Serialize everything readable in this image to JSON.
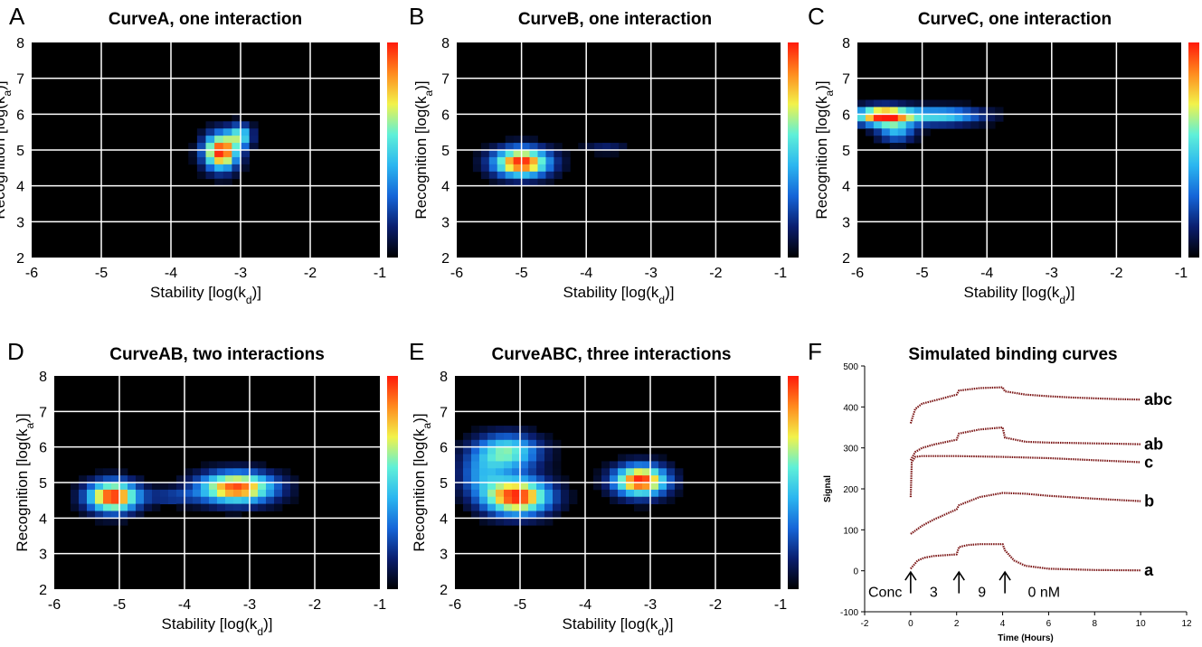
{
  "panels": [
    {
      "letter": "A",
      "title": "CurveA, one interaction"
    },
    {
      "letter": "B",
      "title": "CurveB, one interaction"
    },
    {
      "letter": "C",
      "title": "CurveC, one interaction"
    },
    {
      "letter": "D",
      "title": "CurveAB, two interactions"
    },
    {
      "letter": "E",
      "title": "CurveABC, three interactions"
    },
    {
      "letter": "F",
      "title": "Simulated binding curves"
    }
  ],
  "heatmap_axes": {
    "xlabel_main": "Stability [log(k",
    "xlabel_sub": "d",
    "xlabel_end": ")]",
    "ylabel_main": "Recognition [log(k",
    "ylabel_sub": "a",
    "ylabel_end": ")]"
  },
  "colors": {
    "background": "#000000",
    "grid": "#ffffff",
    "colormap": [
      "#000000",
      "#0a1e6e",
      "#1565d8",
      "#2bb6f0",
      "#5ff0d8",
      "#f2f24a",
      "#ff8a1e",
      "#ff1a0a"
    ],
    "curve": "#7a1414"
  },
  "binding_axes": {
    "xlabel": "Time (Hours)",
    "ylabel": "Signal"
  },
  "annotations": {
    "conc": "Conc",
    "c1": "3",
    "c2": "9",
    "c3": "0 nM"
  },
  "chart_data": [
    {
      "type": "heatmap",
      "panel": "A",
      "title": "CurveA, one interaction",
      "xlim": [
        -6,
        -1
      ],
      "ylim": [
        2,
        8
      ],
      "xticks": [
        "-6",
        "-5",
        "-4",
        "-3",
        "-2",
        "-1"
      ],
      "yticks": [
        "2",
        "3",
        "4",
        "5",
        "6",
        "7",
        "8"
      ],
      "peaks": [
        {
          "x": -3.28,
          "y": 4.95,
          "sx": 0.17,
          "sy": 0.35,
          "amp": 1.0
        },
        {
          "x": -3.0,
          "y": 5.4,
          "sx": 0.12,
          "sy": 0.22,
          "amp": 0.5
        }
      ]
    },
    {
      "type": "heatmap",
      "panel": "B",
      "title": "CurveB, one interaction",
      "xlim": [
        -6,
        -1
      ],
      "ylim": [
        2,
        8
      ],
      "xticks": [
        "-6",
        "-5",
        "-4",
        "-3",
        "-2",
        "-1"
      ],
      "yticks": [
        "2",
        "3",
        "4",
        "5",
        "6",
        "7",
        "8"
      ],
      "peaks": [
        {
          "x": -5.0,
          "y": 4.65,
          "sx": 0.3,
          "sy": 0.28,
          "amp": 1.0
        },
        {
          "x": -3.7,
          "y": 5.05,
          "sx": 0.25,
          "sy": 0.1,
          "amp": 0.15
        }
      ]
    },
    {
      "type": "heatmap",
      "panel": "C",
      "title": "CurveC, one interaction",
      "xlim": [
        -6,
        -1
      ],
      "ylim": [
        2,
        8
      ],
      "xticks": [
        "-6",
        "-5",
        "-4",
        "-3",
        "-2",
        "-1"
      ],
      "yticks": [
        "2",
        "3",
        "4",
        "5",
        "6",
        "7",
        "8"
      ],
      "peaks": [
        {
          "x": -5.6,
          "y": 5.95,
          "sx": 0.3,
          "sy": 0.18,
          "amp": 1.0
        },
        {
          "x": -4.7,
          "y": 5.95,
          "sx": 0.45,
          "sy": 0.17,
          "amp": 0.5
        },
        {
          "x": -5.4,
          "y": 5.5,
          "sx": 0.2,
          "sy": 0.2,
          "amp": 0.4
        }
      ]
    },
    {
      "type": "heatmap",
      "panel": "D",
      "title": "CurveAB, two interactions",
      "xlim": [
        -6,
        -1
      ],
      "ylim": [
        2,
        8
      ],
      "xticks": [
        "-6",
        "-5",
        "-4",
        "-3",
        "-2",
        "-1"
      ],
      "yticks": [
        "2",
        "3",
        "4",
        "5",
        "6",
        "7",
        "8"
      ],
      "peaks": [
        {
          "x": -5.1,
          "y": 4.6,
          "sx": 0.27,
          "sy": 0.3,
          "amp": 1.0
        },
        {
          "x": -3.2,
          "y": 4.85,
          "sx": 0.4,
          "sy": 0.3,
          "amp": 0.95
        },
        {
          "x": -4.2,
          "y": 4.6,
          "sx": 0.3,
          "sy": 0.15,
          "amp": 0.2
        }
      ]
    },
    {
      "type": "heatmap",
      "panel": "E",
      "title": "CurveABC, three interactions",
      "xlim": [
        -6,
        -1
      ],
      "ylim": [
        2,
        8
      ],
      "xticks": [
        "-6",
        "-5",
        "-4",
        "-3",
        "-2",
        "-1"
      ],
      "yticks": [
        "2",
        "3",
        "4",
        "5",
        "6",
        "7",
        "8"
      ],
      "peaks": [
        {
          "x": -5.05,
          "y": 4.6,
          "sx": 0.35,
          "sy": 0.35,
          "amp": 1.0
        },
        {
          "x": -5.2,
          "y": 5.85,
          "sx": 0.35,
          "sy": 0.35,
          "amp": 0.6
        },
        {
          "x": -3.15,
          "y": 5.05,
          "sx": 0.28,
          "sy": 0.3,
          "amp": 1.0
        },
        {
          "x": -5.6,
          "y": 5.2,
          "sx": 0.25,
          "sy": 0.4,
          "amp": 0.3
        }
      ]
    },
    {
      "type": "line",
      "panel": "F",
      "title": "Simulated binding curves",
      "xlabel": "Time (Hours)",
      "ylabel": "Signal",
      "xlim": [
        -2,
        12
      ],
      "ylim": [
        -100,
        500
      ],
      "xticks": [
        "-2",
        "0",
        "2",
        "4",
        "6",
        "8",
        "10",
        "12"
      ],
      "yticks": [
        "-100",
        "0",
        "100",
        "200",
        "300",
        "400",
        "500"
      ],
      "series": [
        {
          "name": "abc",
          "x": [
            0,
            0.2,
            0.5,
            1,
            2,
            2.1,
            3,
            4,
            4.1,
            5,
            6,
            7,
            8,
            9,
            10
          ],
          "y": [
            360,
            395,
            408,
            415,
            430,
            440,
            446,
            448,
            438,
            430,
            426,
            423,
            421,
            419,
            418
          ]
        },
        {
          "name": "ab",
          "x": [
            0,
            0.2,
            0.5,
            1,
            2,
            2.1,
            3,
            4,
            4.1,
            5,
            6,
            7,
            8,
            9,
            10
          ],
          "y": [
            270,
            290,
            300,
            308,
            320,
            335,
            345,
            350,
            325,
            315,
            313,
            312,
            311,
            310,
            309
          ]
        },
        {
          "name": "c",
          "x": [
            0,
            0.05,
            0.2,
            0.5,
            1,
            2,
            4,
            6,
            8,
            10
          ],
          "y": [
            180,
            265,
            278,
            280,
            280,
            280,
            278,
            275,
            270,
            265
          ]
        },
        {
          "name": "b",
          "x": [
            0,
            0.5,
            1,
            2,
            2.1,
            3,
            4,
            5,
            6,
            8,
            10
          ],
          "y": [
            90,
            110,
            125,
            150,
            160,
            180,
            190,
            188,
            183,
            176,
            170
          ]
        },
        {
          "name": "a",
          "x": [
            0,
            0.3,
            0.6,
            1,
            2,
            2.1,
            2.5,
            3,
            4,
            4.1,
            4.5,
            5,
            6,
            8,
            10
          ],
          "y": [
            5,
            25,
            32,
            36,
            40,
            58,
            63,
            65,
            65,
            50,
            25,
            12,
            5,
            2,
            1
          ]
        }
      ],
      "arrows_x": [
        0,
        2.1,
        4.1
      ]
    }
  ]
}
